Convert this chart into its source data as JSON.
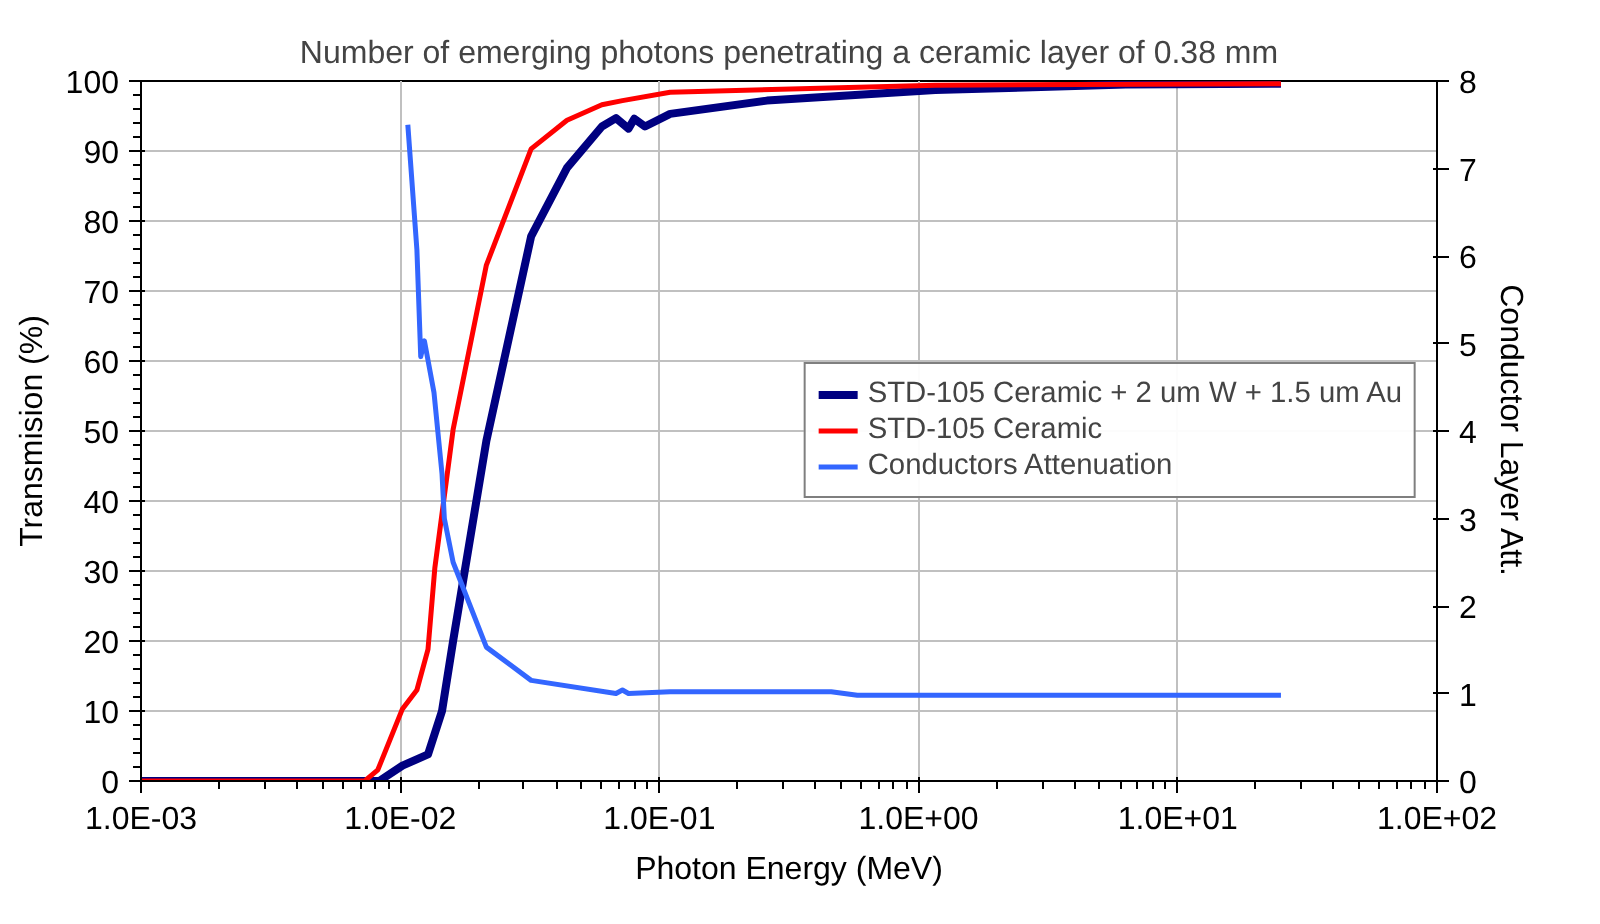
{
  "chart_data": {
    "type": "line",
    "title": "Number of emerging photons penetrating a ceramic layer of 0.38 mm",
    "xlabel": "Photon Energy (MeV)",
    "ylabel": "Transmision (%)",
    "y2label": "Conductor Layer Att.",
    "log": "x",
    "xlim": [
      0.001,
      100
    ],
    "xticks": [
      {
        "value": 0.001,
        "label": "1.0E-03"
      },
      {
        "value": 0.01,
        "label": "1.0E-02"
      },
      {
        "value": 0.1,
        "label": "1.0E-01"
      },
      {
        "value": 1,
        "label": "1.0E+00"
      },
      {
        "value": 10,
        "label": "1.0E+01"
      },
      {
        "value": 100,
        "label": "1.0E+02"
      }
    ],
    "ylim": [
      0,
      100
    ],
    "yticks": [
      0,
      10,
      20,
      30,
      40,
      50,
      60,
      70,
      80,
      90,
      100
    ],
    "y2lim": [
      0,
      8
    ],
    "y2ticks": [
      0,
      1,
      2,
      3,
      4,
      5,
      6,
      7,
      8
    ],
    "grid": true,
    "legend": "right",
    "line_style": "solid",
    "marker": "none",
    "series": [
      {
        "name": "STD-105 Ceramic + 2 um W + 1.5 um Au",
        "color": "#000080",
        "x": [
          0.001,
          0.0083,
          0.0102,
          0.0128,
          0.0145,
          0.016,
          0.0215,
          0.032,
          0.044,
          0.06,
          0.068,
          0.076,
          0.08,
          0.088,
          0.11,
          0.26,
          1.16,
          6.3,
          25
        ],
        "values": [
          0,
          0,
          2.2,
          3.8,
          10,
          20,
          48.6,
          77.8,
          87.6,
          93.5,
          94.7,
          93.2,
          94.6,
          93.5,
          95.3,
          97.2,
          98.7,
          99.5,
          99.6
        ]
      },
      {
        "name": "STD-105 Ceramic",
        "color": "#ff0000",
        "x": [
          0.001,
          0.0073,
          0.0082,
          0.0102,
          0.0116,
          0.0128,
          0.0136,
          0.016,
          0.0215,
          0.032,
          0.044,
          0.06,
          0.072,
          0.11,
          1.16,
          25
        ],
        "values": [
          0,
          0,
          1.6,
          10.3,
          13,
          18.8,
          30.4,
          50.2,
          73.7,
          90.3,
          94.4,
          96.6,
          97.2,
          98.4,
          99.4,
          99.6
        ]
      },
      {
        "name": "Conductors Attenuation",
        "color": "#3366ff",
        "axis": "y2",
        "x": [
          0.0107,
          0.0116,
          0.012,
          0.0124,
          0.0135,
          0.0145,
          0.0148,
          0.016,
          0.0215,
          0.032,
          0.068,
          0.072,
          0.076,
          0.11,
          0.46,
          0.58,
          25
        ],
        "values": [
          7.5,
          6.07,
          4.85,
          5.03,
          4.44,
          3.51,
          3.0,
          2.5,
          1.53,
          1.15,
          1.0,
          1.04,
          1.0,
          1.02,
          1.02,
          0.98,
          0.98
        ]
      }
    ]
  }
}
